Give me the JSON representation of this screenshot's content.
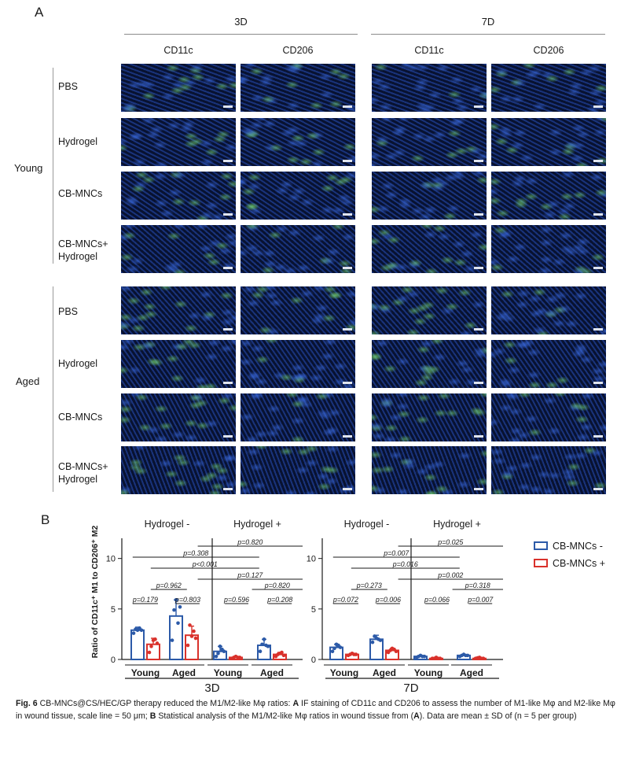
{
  "panel_a": {
    "letter": "A",
    "timepoints": [
      "3D",
      "7D"
    ],
    "stains": [
      "CD11c",
      "CD206",
      "CD11c",
      "CD206"
    ],
    "groups": [
      {
        "label": "Young",
        "rows": [
          "PBS",
          "Hydrogel",
          "CB-MNCs",
          "CB-MNCs+\nHydrogel"
        ]
      },
      {
        "label": "Aged",
        "rows": [
          "PBS",
          "Hydrogel",
          "CB-MNCs",
          "CB-MNCs+\nHydrogel"
        ]
      }
    ]
  },
  "panel_b": {
    "letter": "B",
    "ylabel": "Ratio of CD11c⁺ M1 to CD206⁺ M2",
    "legend": [
      {
        "label": "CB-MNCs -",
        "color": "#2c5aa8"
      },
      {
        "label": "CB-MNCs +",
        "color": "#d9312b"
      }
    ]
  },
  "chart_data": [
    {
      "type": "bar",
      "title": "3D",
      "section_labels": [
        "Hydrogel -",
        "Hydrogel +"
      ],
      "categories": [
        "Young",
        "Aged",
        "Young",
        "Aged"
      ],
      "ylim": [
        0,
        12
      ],
      "yticks": [
        0,
        5,
        10
      ],
      "series": [
        {
          "name": "CB-MNCs -",
          "color": "#2c5aa8",
          "values": [
            2.9,
            4.3,
            0.8,
            1.4
          ],
          "sd": [
            0.3,
            1.6,
            0.5,
            0.6
          ],
          "points": [
            [
              2.6,
              3.0,
              2.9,
              3.1,
              2.9
            ],
            [
              1.9,
              4.9,
              5.9,
              3.6,
              5.2
            ],
            [
              0.3,
              0.6,
              1.3,
              1.0,
              0.8
            ],
            [
              0.8,
              1.5,
              2.0,
              1.4,
              1.3
            ]
          ]
        },
        {
          "name": "CB-MNCs +",
          "color": "#d9312b",
          "values": [
            1.5,
            2.4,
            0.2,
            0.5
          ],
          "sd": [
            0.6,
            0.9,
            0.1,
            0.2
          ],
          "points": [
            [
              0.7,
              1.3,
              1.9,
              2.0,
              1.6
            ],
            [
              1.4,
              3.4,
              2.3,
              2.8,
              2.1
            ],
            [
              0.1,
              0.2,
              0.3,
              0.2,
              0.2
            ],
            [
              0.3,
              0.5,
              0.6,
              0.7,
              0.4
            ]
          ]
        }
      ],
      "annotations": [
        "p=0.820",
        "p=0.308",
        "p<0.001",
        "p=0.127",
        "p=0.962",
        "p=0.820",
        "p=0.179",
        "p=0.803",
        "p=0.596",
        "p=0.208"
      ]
    },
    {
      "type": "bar",
      "title": "7D",
      "section_labels": [
        "Hydrogel -",
        "Hydrogel +"
      ],
      "categories": [
        "Young",
        "Aged",
        "Young",
        "Aged"
      ],
      "ylim": [
        0,
        12
      ],
      "yticks": [
        0,
        5,
        10
      ],
      "series": [
        {
          "name": "CB-MNCs -",
          "color": "#2c5aa8",
          "values": [
            1.2,
            2.0,
            0.3,
            0.4
          ],
          "sd": [
            0.3,
            0.4,
            0.1,
            0.1
          ],
          "points": [
            [
              0.8,
              1.1,
              1.5,
              1.4,
              1.2
            ],
            [
              1.7,
              2.3,
              2.1,
              2.0,
              1.9
            ],
            [
              0.2,
              0.3,
              0.4,
              0.3,
              0.3
            ],
            [
              0.3,
              0.4,
              0.5,
              0.4,
              0.4
            ]
          ]
        },
        {
          "name": "CB-MNCs +",
          "color": "#d9312b",
          "values": [
            0.5,
            0.9,
            0.1,
            0.1
          ],
          "sd": [
            0.1,
            0.2,
            0.05,
            0.05
          ],
          "points": [
            [
              0.4,
              0.5,
              0.6,
              0.5,
              0.5
            ],
            [
              0.7,
              0.9,
              1.1,
              1.0,
              0.8
            ],
            [
              0.1,
              0.1,
              0.2,
              0.1,
              0.1
            ],
            [
              0.1,
              0.15,
              0.2,
              0.1,
              0.1
            ]
          ]
        }
      ],
      "annotations": [
        "p=0.025",
        "p=0.007",
        "p=0.016",
        "p=0.002",
        "p=0.273",
        "p=0.318",
        "p=0.072",
        "p=0.006",
        "p=0.066",
        "p=0.007"
      ]
    }
  ],
  "caption": {
    "fig_label": "Fig. 6",
    "line1": "CB-MNCs@CS/HEC/GP therapy reduced the M1/M2-like Mφ ratios:",
    "a_letter": "A",
    "a_text": "IF staining of CD11c and CD206 to assess the number of M1-like Mφ and M2-like Mφ in wound tissue, scale line = 50 μm;",
    "b_letter": "B",
    "b_text": "Statistical analysis of the M1/M2-like Mφ ratios in wound tissue from (",
    "b_ref": "A",
    "b_tail": "). Data are mean ± SD of (n = 5 per group)"
  }
}
